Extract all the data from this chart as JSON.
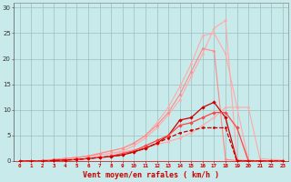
{
  "background_color": "#c8eaea",
  "grid_color": "#9bbfbf",
  "line_color_light1": "#ffaaaa",
  "line_color_light2": "#ff8888",
  "line_color_mid": "#ff4444",
  "line_color_dark": "#cc0000",
  "xlabel": "Vent moyen/en rafales ( km/h )",
  "xlabel_color": "#cc0000",
  "ylabel_ticks": [
    0,
    5,
    10,
    15,
    20,
    25,
    30
  ],
  "xlim": [
    -0.5,
    23.5
  ],
  "ylim": [
    0,
    31
  ],
  "x_vals": [
    0,
    1,
    2,
    3,
    4,
    5,
    6,
    7,
    8,
    9,
    10,
    11,
    12,
    13,
    14,
    15,
    16,
    17,
    18,
    19,
    20,
    21,
    22,
    23
  ],
  "line_light_straight_y": [
    0,
    0,
    0.1,
    0.3,
    0.5,
    0.7,
    0.9,
    1.2,
    1.5,
    1.8,
    2.2,
    2.7,
    3.2,
    3.8,
    4.5,
    5.5,
    7.0,
    8.5,
    10.5,
    10.5,
    10.5,
    0.5,
    0.3,
    0.2
  ],
  "line_light_peak1_y": [
    0,
    0,
    0.1,
    0.3,
    0.5,
    0.7,
    0.9,
    1.2,
    1.5,
    2.0,
    3.0,
    4.5,
    6.5,
    9.0,
    12.0,
    16.5,
    21.0,
    26.0,
    27.5,
    0.3,
    0.1,
    0,
    0,
    0
  ],
  "line_light_peak2_y": [
    0,
    0,
    0.1,
    0.3,
    0.5,
    0.7,
    1.0,
    1.5,
    2.0,
    2.5,
    3.5,
    5.0,
    7.5,
    10.5,
    14.5,
    19.0,
    24.5,
    25.0,
    21.0,
    10.5,
    0.2,
    0,
    0,
    0
  ],
  "line_light_long_y": [
    0,
    0,
    0.1,
    0.3,
    0.5,
    0.7,
    1.0,
    1.5,
    2.0,
    2.5,
    3.5,
    5.0,
    7.0,
    9.5,
    13.0,
    17.5,
    22.0,
    21.5,
    0.3,
    0.1,
    0,
    0,
    0,
    0
  ],
  "line_dark_peak_y": [
    0,
    0,
    0,
    0.1,
    0.2,
    0.3,
    0.5,
    0.7,
    0.9,
    1.2,
    1.8,
    2.5,
    3.5,
    5.0,
    8.0,
    8.5,
    10.5,
    11.5,
    8.5,
    0,
    0,
    0,
    0,
    0
  ],
  "line_dark_flat_y": [
    0,
    0,
    0,
    0.1,
    0.2,
    0.3,
    0.5,
    0.7,
    1.0,
    1.5,
    2.0,
    3.0,
    4.0,
    5.0,
    7.0,
    7.5,
    8.5,
    9.5,
    9.5,
    6.5,
    0,
    0,
    0,
    0
  ],
  "line_dark_low_y": [
    0,
    0,
    0,
    0.1,
    0.2,
    0.3,
    0.5,
    0.7,
    0.9,
    1.2,
    1.8,
    2.5,
    3.5,
    4.5,
    5.5,
    6.0,
    6.5,
    6.5,
    6.5,
    0,
    0,
    0,
    0,
    0
  ]
}
